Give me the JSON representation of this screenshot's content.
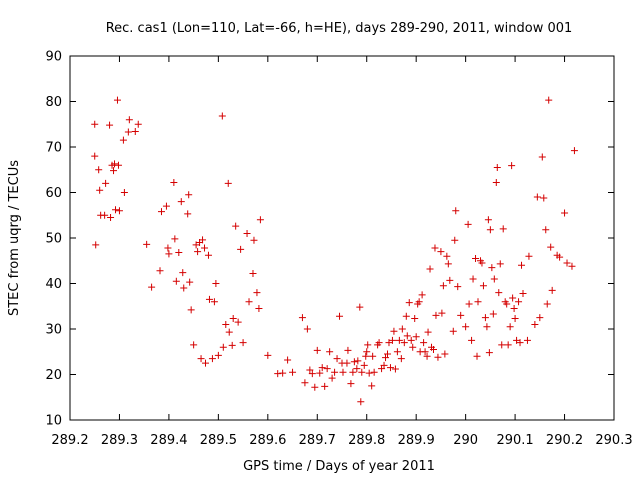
{
  "chart_data": {
    "type": "scatter",
    "title": "Rec. cas1 (Lon=110, Lat=-66, h=HE), days 289-290, 2011, window 001",
    "xlabel": "GPS time / Days of year 2011",
    "ylabel": "STEC from uqrg / TECUs",
    "xlim": [
      289.2,
      290.3
    ],
    "ylim": [
      10,
      90
    ],
    "xticks": [
      "289.2",
      "289.3",
      "289.4",
      "289.5",
      "289.6",
      "289.7",
      "289.8",
      "289.9",
      "290",
      "290.1",
      "290.2",
      "290.3"
    ],
    "yticks": [
      "10",
      "20",
      "30",
      "40",
      "50",
      "60",
      "70",
      "80",
      "90"
    ],
    "grid": false,
    "marker": "plus",
    "color": "#d40000",
    "series": [
      {
        "name": "",
        "points": [
          [
            289.25,
            75.0
          ],
          [
            289.25,
            68.0
          ],
          [
            289.252,
            48.5
          ],
          [
            289.258,
            65.0
          ],
          [
            289.26,
            60.5
          ],
          [
            289.262,
            55.0
          ],
          [
            289.27,
            55.0
          ],
          [
            289.272,
            62.0
          ],
          [
            289.28,
            74.8
          ],
          [
            289.282,
            54.5
          ],
          [
            289.285,
            66.0
          ],
          [
            289.288,
            64.8
          ],
          [
            289.29,
            66.3
          ],
          [
            289.292,
            56.2
          ],
          [
            289.296,
            80.3
          ],
          [
            289.298,
            66.0
          ],
          [
            289.3,
            56.0
          ],
          [
            289.308,
            71.5
          ],
          [
            289.31,
            60.0
          ],
          [
            289.318,
            73.3
          ],
          [
            289.32,
            76.0
          ],
          [
            289.332,
            73.4
          ],
          [
            289.338,
            75.0
          ],
          [
            289.355,
            48.6
          ],
          [
            289.365,
            39.2
          ],
          [
            289.382,
            42.8
          ],
          [
            289.385,
            55.8
          ],
          [
            289.395,
            57.0
          ],
          [
            289.398,
            47.8
          ],
          [
            289.4,
            46.5
          ],
          [
            289.41,
            62.2
          ],
          [
            289.412,
            49.8
          ],
          [
            289.415,
            40.5
          ],
          [
            289.42,
            46.8
          ],
          [
            289.425,
            58.0
          ],
          [
            289.428,
            42.4
          ],
          [
            289.43,
            39.0
          ],
          [
            289.438,
            55.3
          ],
          [
            289.44,
            59.5
          ],
          [
            289.442,
            40.3
          ],
          [
            289.445,
            34.2
          ],
          [
            289.45,
            26.5
          ],
          [
            289.455,
            48.5
          ],
          [
            289.458,
            47.0
          ],
          [
            289.462,
            49.0
          ],
          [
            289.465,
            23.5
          ],
          [
            289.468,
            49.6
          ],
          [
            289.472,
            47.8
          ],
          [
            289.474,
            22.5
          ],
          [
            289.48,
            46.2
          ],
          [
            289.482,
            36.5
          ],
          [
            289.488,
            23.5
          ],
          [
            289.492,
            36.0
          ],
          [
            289.495,
            40.0
          ],
          [
            289.5,
            24.2
          ],
          [
            289.508,
            76.8
          ],
          [
            289.51,
            26.0
          ],
          [
            289.515,
            31.0
          ],
          [
            289.52,
            62.0
          ],
          [
            289.522,
            29.3
          ],
          [
            289.528,
            26.4
          ],
          [
            289.53,
            32.3
          ],
          [
            289.535,
            52.6
          ],
          [
            289.54,
            31.5
          ],
          [
            289.545,
            47.5
          ],
          [
            289.55,
            27.0
          ],
          [
            289.558,
            51.0
          ],
          [
            289.562,
            36.0
          ],
          [
            289.57,
            42.2
          ],
          [
            289.572,
            49.5
          ],
          [
            289.578,
            38.0
          ],
          [
            289.582,
            34.5
          ],
          [
            289.585,
            54.0
          ],
          [
            289.6,
            24.2
          ],
          [
            289.62,
            20.2
          ],
          [
            289.63,
            20.3
          ],
          [
            289.64,
            23.2
          ],
          [
            289.65,
            20.5
          ],
          [
            289.67,
            32.5
          ],
          [
            289.675,
            18.2
          ],
          [
            289.68,
            30.0
          ],
          [
            289.685,
            21.0
          ],
          [
            289.69,
            20.2
          ],
          [
            289.695,
            17.2
          ],
          [
            289.7,
            25.3
          ],
          [
            289.705,
            20.3
          ],
          [
            289.71,
            21.5
          ],
          [
            289.715,
            17.4
          ],
          [
            289.72,
            21.3
          ],
          [
            289.725,
            25.0
          ],
          [
            289.73,
            19.2
          ],
          [
            289.735,
            20.5
          ],
          [
            289.74,
            23.5
          ],
          [
            289.745,
            32.8
          ],
          [
            289.75,
            22.5
          ],
          [
            289.752,
            20.5
          ],
          [
            289.76,
            22.5
          ],
          [
            289.762,
            25.3
          ],
          [
            289.768,
            18.0
          ],
          [
            289.772,
            20.5
          ],
          [
            289.775,
            22.8
          ],
          [
            289.78,
            21.3
          ],
          [
            289.782,
            23.0
          ],
          [
            289.786,
            34.8
          ],
          [
            289.788,
            14.0
          ],
          [
            289.79,
            20.5
          ],
          [
            289.795,
            22.0
          ],
          [
            289.798,
            24.0
          ],
          [
            289.8,
            25.0
          ],
          [
            289.802,
            26.5
          ],
          [
            289.805,
            20.3
          ],
          [
            289.81,
            17.5
          ],
          [
            289.812,
            24.0
          ],
          [
            289.815,
            20.5
          ],
          [
            289.822,
            26.5
          ],
          [
            289.825,
            27.0
          ],
          [
            289.83,
            21.3
          ],
          [
            289.835,
            22.0
          ],
          [
            289.838,
            23.7
          ],
          [
            289.842,
            24.5
          ],
          [
            289.845,
            27.0
          ],
          [
            289.848,
            21.5
          ],
          [
            289.852,
            27.5
          ],
          [
            289.855,
            29.5
          ],
          [
            289.858,
            21.2
          ],
          [
            289.862,
            25.0
          ],
          [
            289.866,
            27.5
          ],
          [
            289.87,
            23.5
          ],
          [
            289.872,
            30.0
          ],
          [
            289.876,
            27.0
          ],
          [
            289.88,
            32.8
          ],
          [
            289.882,
            28.5
          ],
          [
            289.886,
            35.8
          ],
          [
            289.89,
            27.5
          ],
          [
            289.893,
            26.0
          ],
          [
            289.897,
            32.3
          ],
          [
            289.9,
            28.3
          ],
          [
            289.903,
            35.5
          ],
          [
            289.906,
            36.0
          ],
          [
            289.908,
            25.0
          ],
          [
            289.912,
            37.5
          ],
          [
            289.915,
            27.0
          ],
          [
            289.918,
            25.0
          ],
          [
            289.922,
            24.0
          ],
          [
            289.924,
            29.3
          ],
          [
            289.928,
            43.2
          ],
          [
            289.931,
            26.0
          ],
          [
            289.935,
            25.5
          ],
          [
            289.938,
            47.8
          ],
          [
            289.94,
            33.0
          ],
          [
            289.944,
            23.8
          ],
          [
            289.95,
            47.0
          ],
          [
            289.952,
            33.5
          ],
          [
            289.955,
            39.5
          ],
          [
            289.958,
            24.5
          ],
          [
            289.962,
            46.0
          ],
          [
            289.965,
            44.3
          ],
          [
            289.968,
            40.7
          ],
          [
            289.975,
            29.5
          ],
          [
            289.978,
            49.5
          ],
          [
            289.98,
            56.0
          ],
          [
            289.984,
            39.3
          ],
          [
            289.99,
            33.0
          ],
          [
            290.0,
            30.5
          ],
          [
            290.005,
            53.0
          ],
          [
            290.007,
            35.5
          ],
          [
            290.012,
            27.5
          ],
          [
            290.015,
            41.0
          ],
          [
            290.02,
            45.5
          ],
          [
            290.023,
            24.0
          ],
          [
            290.025,
            36.0
          ],
          [
            290.03,
            45.0
          ],
          [
            290.033,
            44.5
          ],
          [
            290.036,
            39.5
          ],
          [
            290.04,
            32.5
          ],
          [
            290.043,
            30.5
          ],
          [
            290.046,
            54.0
          ],
          [
            290.048,
            24.8
          ],
          [
            290.05,
            51.8
          ],
          [
            290.053,
            43.5
          ],
          [
            290.056,
            33.3
          ],
          [
            290.058,
            41.0
          ],
          [
            290.062,
            62.2
          ],
          [
            290.064,
            65.5
          ],
          [
            290.067,
            38.0
          ],
          [
            290.07,
            44.3
          ],
          [
            290.073,
            26.5
          ],
          [
            290.076,
            52.0
          ],
          [
            290.08,
            36.0
          ],
          [
            290.083,
            35.5
          ],
          [
            290.086,
            26.5
          ],
          [
            290.09,
            30.5
          ],
          [
            290.093,
            65.9
          ],
          [
            290.095,
            36.8
          ],
          [
            290.098,
            34.5
          ],
          [
            290.1,
            32.3
          ],
          [
            290.103,
            27.5
          ],
          [
            290.107,
            36.0
          ],
          [
            290.11,
            27.0
          ],
          [
            290.113,
            44.0
          ],
          [
            290.116,
            37.8
          ],
          [
            290.125,
            27.5
          ],
          [
            290.128,
            46.0
          ],
          [
            290.14,
            31.0
          ],
          [
            290.145,
            59.0
          ],
          [
            290.15,
            32.5
          ],
          [
            290.155,
            67.8
          ],
          [
            290.158,
            58.8
          ],
          [
            290.162,
            51.8
          ],
          [
            290.165,
            35.5
          ],
          [
            290.168,
            80.3
          ],
          [
            290.172,
            48.0
          ],
          [
            290.175,
            38.5
          ],
          [
            290.185,
            46.2
          ],
          [
            290.19,
            45.8
          ],
          [
            290.2,
            55.5
          ],
          [
            290.205,
            44.5
          ],
          [
            290.215,
            43.8
          ],
          [
            290.22,
            69.2
          ]
        ]
      }
    ]
  }
}
